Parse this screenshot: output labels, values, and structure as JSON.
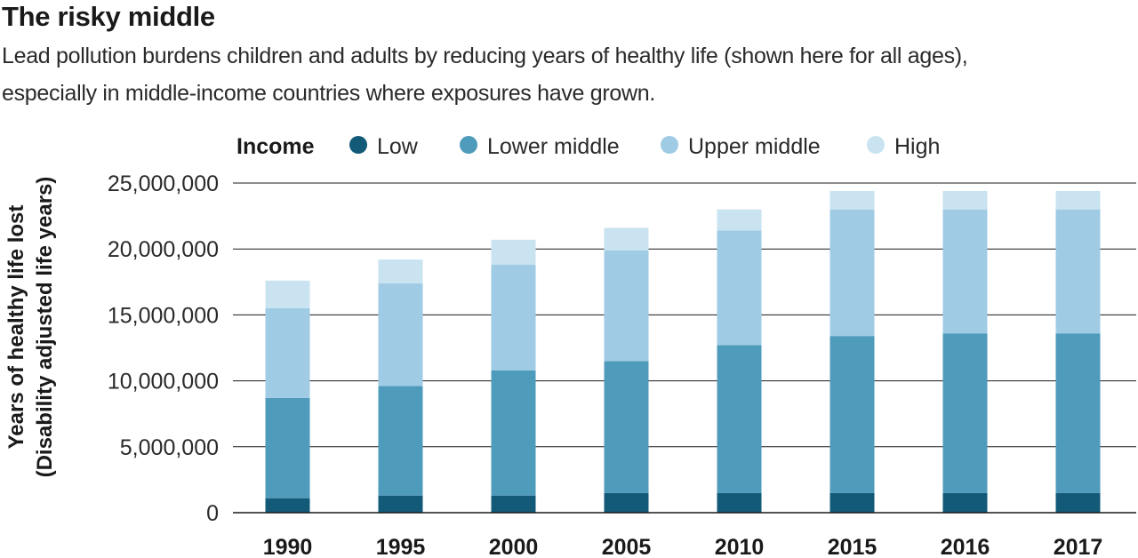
{
  "chart_data": {
    "type": "bar",
    "stacked": true,
    "title": "The risky middle",
    "subtitle_lines": [
      "Lead pollution burdens children and adults by reducing years of healthy life (shown here for all ages),",
      "especially in middle-income countries where exposures have grown."
    ],
    "legend": {
      "title": "Income",
      "position": "top"
    },
    "ylabel_lines": [
      "Years of healthy life lost",
      "(Disability adjusted life years)"
    ],
    "categories": [
      "1990",
      "1995",
      "2000",
      "2005",
      "2010",
      "2015",
      "2016",
      "2017"
    ],
    "ylim": [
      0,
      25000000
    ],
    "yticks": [
      0,
      5000000,
      10000000,
      15000000,
      20000000,
      25000000
    ],
    "ytick_labels": [
      "0",
      "5,000,000",
      "10,000,000",
      "15,000,000",
      "20,000,000",
      "25,000,000"
    ],
    "grid": true,
    "series": [
      {
        "name": "Low",
        "color": "#135a78",
        "values": [
          1100000,
          1300000,
          1300000,
          1500000,
          1500000,
          1500000,
          1500000,
          1500000
        ]
      },
      {
        "name": "Lower middle",
        "color": "#4f9bbb",
        "values": [
          7600000,
          8300000,
          9500000,
          10000000,
          11200000,
          11900000,
          12100000,
          12100000
        ]
      },
      {
        "name": "Upper middle",
        "color": "#9fcbe4",
        "values": [
          6800000,
          7800000,
          8000000,
          8400000,
          8700000,
          9600000,
          9400000,
          9400000
        ]
      },
      {
        "name": "High",
        "color": "#c9e3f1",
        "values": [
          2100000,
          1800000,
          1900000,
          1700000,
          1600000,
          1400000,
          1400000,
          1400000
        ]
      }
    ]
  }
}
